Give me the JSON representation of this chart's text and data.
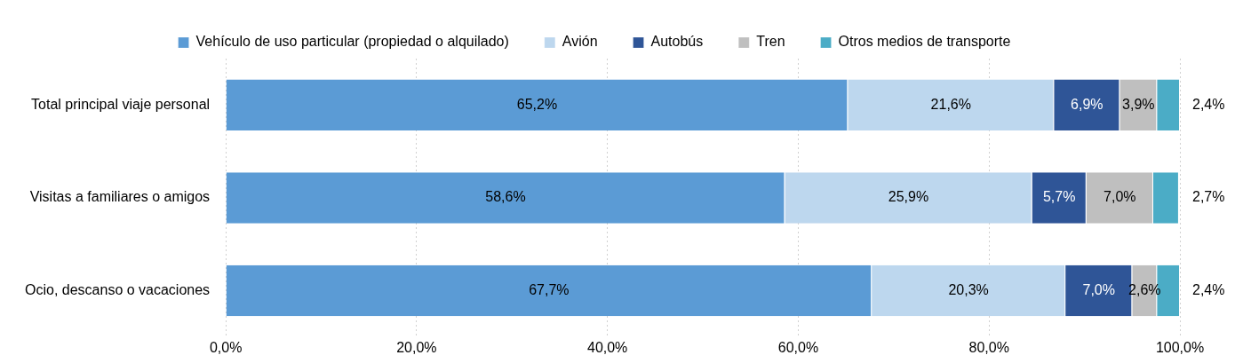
{
  "chart_data": {
    "type": "bar",
    "orientation": "horizontal",
    "stacked": true,
    "categories": [
      "Total principal viaje personal",
      "Visitas a familiares o amigos",
      "Ocio, descanso o vacaciones"
    ],
    "series": [
      {
        "name": "Vehículo de uso particular (propiedad o alquilado)",
        "color": "#5b9bd5",
        "values": [
          65.2,
          58.6,
          67.7
        ],
        "value_labels": [
          "65,2%",
          "58,6%",
          "67,7%"
        ]
      },
      {
        "name": "Avión",
        "color": "#bdd7ee",
        "values": [
          21.6,
          25.9,
          20.3
        ],
        "value_labels": [
          "21,6%",
          "25,9%",
          "20,3%"
        ]
      },
      {
        "name": "Autobús",
        "color": "#2f5597",
        "values": [
          6.9,
          5.7,
          7.0
        ],
        "value_labels": [
          "6,9%",
          "5,7%",
          "7,0%"
        ]
      },
      {
        "name": "Tren",
        "color": "#bfbfbf",
        "values": [
          3.9,
          7.0,
          2.6
        ],
        "value_labels": [
          "3,9%",
          "7,0%",
          "2,6%"
        ]
      },
      {
        "name": "Otros medios de transporte",
        "color": "#4bacc6",
        "values": [
          2.4,
          2.7,
          2.4
        ],
        "value_labels": [
          "2,4%",
          "2,7%",
          "2,4%"
        ]
      }
    ],
    "xlim": [
      0,
      100
    ],
    "xticks": [
      {
        "value": 0,
        "label": "0,0%"
      },
      {
        "value": 20,
        "label": "20,0%"
      },
      {
        "value": 40,
        "label": "40,0%"
      },
      {
        "value": 60,
        "label": "60,0%"
      },
      {
        "value": 80,
        "label": "80,0%"
      },
      {
        "value": 100,
        "label": "100,0%"
      }
    ],
    "grid": "x",
    "legend": "top"
  }
}
